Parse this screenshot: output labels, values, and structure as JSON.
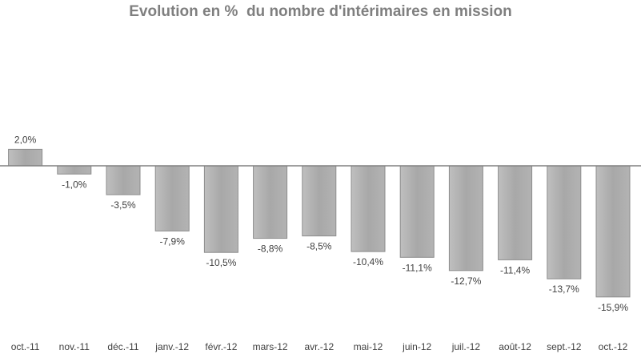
{
  "chart_data": {
    "type": "bar",
    "title": "Evolution en %  du nombre d'intérimaires en mission",
    "categories": [
      "oct.-11",
      "nov.-11",
      "déc.-11",
      "janv.-12",
      "févr.-12",
      "mars-12",
      "avr.-12",
      "mai-12",
      "juin-12",
      "juil.-12",
      "août-12",
      "sept.-12",
      "oct.-12"
    ],
    "values": [
      2.0,
      -1.0,
      -3.5,
      -7.9,
      -10.5,
      -8.8,
      -8.5,
      -10.4,
      -11.1,
      -12.7,
      -11.4,
      -13.7,
      -15.9
    ],
    "data_labels": [
      "2,0%",
      "-1,0%",
      "-3,5%",
      "-7,9%",
      "-10,5%",
      "-8,8%",
      "-8,5%",
      "-10,4%",
      "-11,1%",
      "-12,7%",
      "-11,4%",
      "-13,7%",
      "-15,9%"
    ],
    "xlabel": "",
    "ylabel": "",
    "ylim": [
      -16.5,
      2.5
    ],
    "grid": false,
    "legend": "none",
    "bar_color": "#a6a6a6",
    "axis_color": "#808080"
  }
}
